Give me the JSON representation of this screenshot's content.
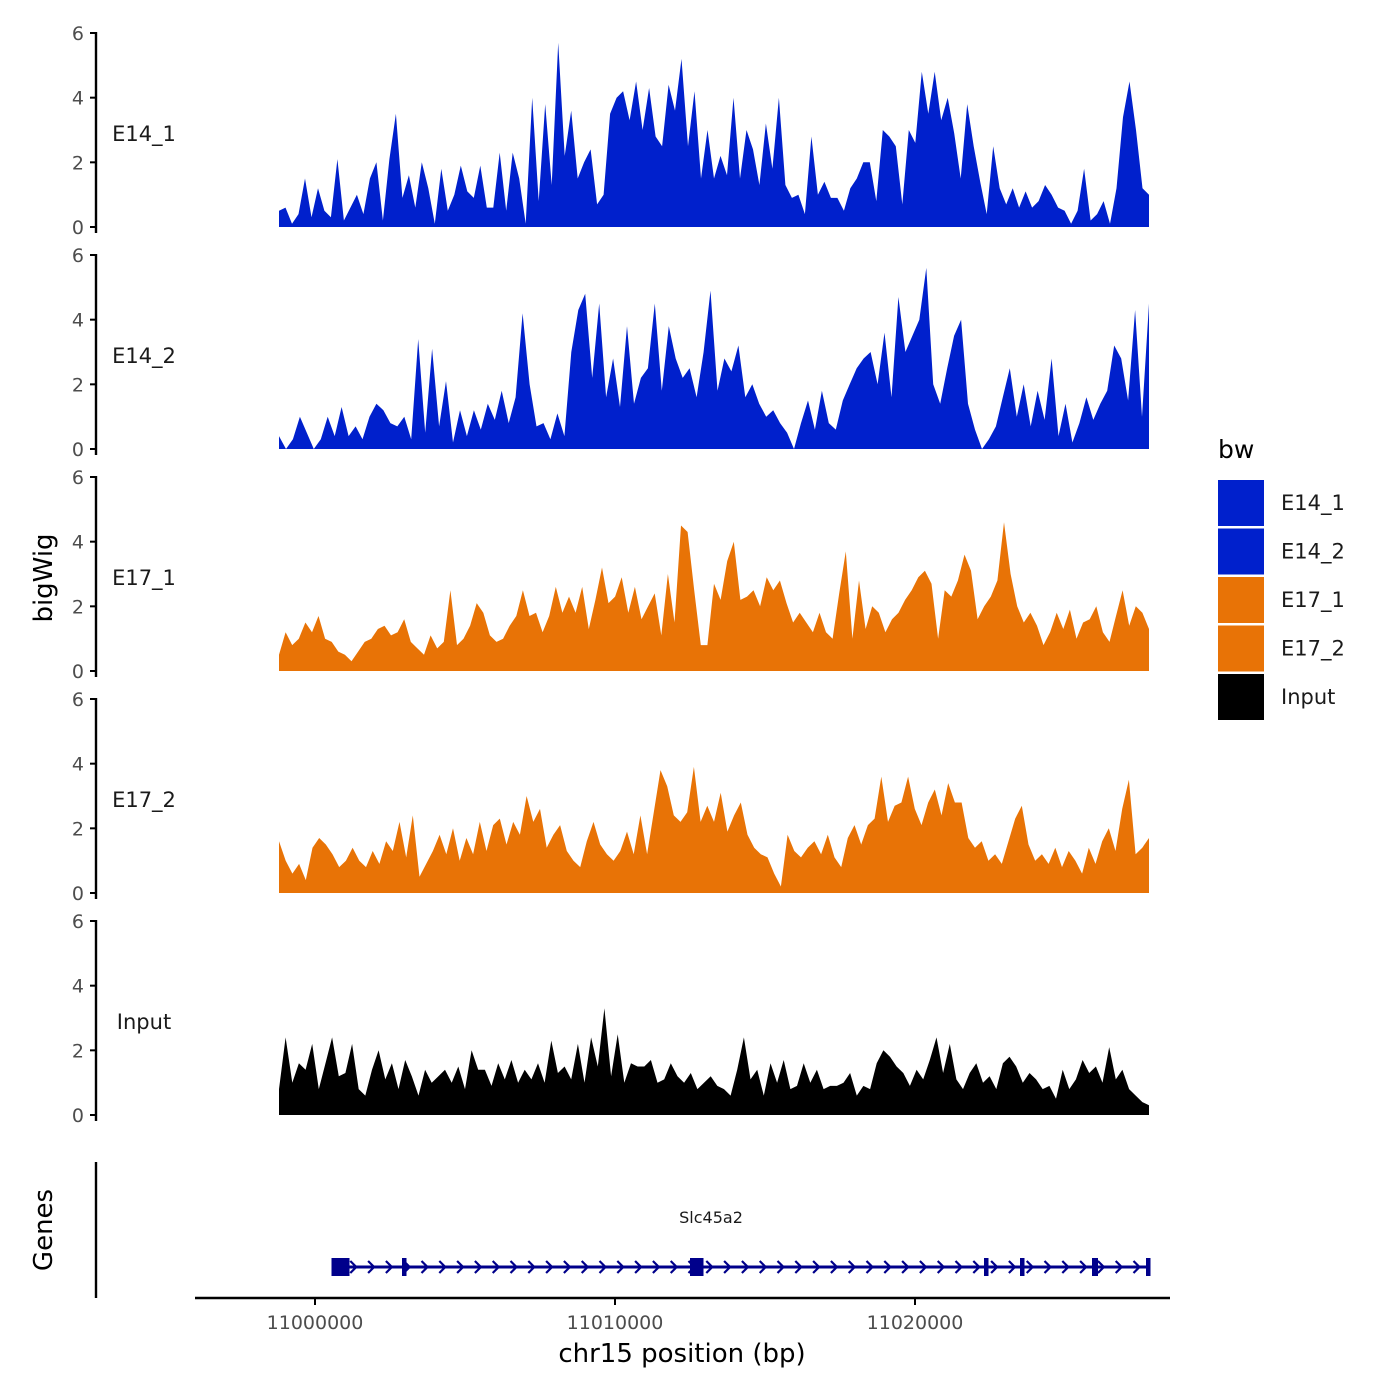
{
  "chart_data": {
    "type": "area",
    "title": "",
    "xlabel": "chr15 position (bp)",
    "ylabel": "bigWig",
    "genes_label": "Genes",
    "xlim": [
      10996000,
      11028500
    ],
    "ylim": [
      0,
      6
    ],
    "x_ticks": [
      11000000,
      11010000,
      11020000
    ],
    "y_ticks": [
      0,
      2,
      4,
      6
    ],
    "data_range": [
      10998800,
      11027800
    ],
    "legend": {
      "title": "bw",
      "placement": "right",
      "entries": [
        {
          "label": "E14_1",
          "color": "#0020CC"
        },
        {
          "label": "E14_2",
          "color": "#0020CC"
        },
        {
          "label": "E17_1",
          "color": "#E87306"
        },
        {
          "label": "E17_2",
          "color": "#E87306"
        },
        {
          "label": "Input",
          "color": "#000000"
        }
      ]
    },
    "series": [
      {
        "name": "E14_1",
        "color": "#0020CC",
        "values": [
          0.5,
          0.6,
          0.1,
          0.4,
          1.5,
          0.3,
          1.2,
          0.5,
          0.3,
          2.1,
          0.2,
          0.6,
          1.0,
          0.4,
          1.5,
          2.0,
          0.2,
          2.1,
          3.5,
          0.9,
          1.6,
          0.6,
          2.0,
          1.2,
          0.1,
          1.8,
          0.5,
          1.0,
          1.9,
          1.1,
          0.9,
          1.9,
          0.6,
          0.6,
          2.3,
          0.5,
          2.3,
          1.5,
          0.1,
          4.0,
          0.8,
          3.8,
          1.3,
          5.7,
          2.2,
          3.6,
          1.5,
          2.0,
          2.4,
          0.7,
          1.0,
          3.5,
          4.0,
          4.2,
          3.3,
          4.5,
          3.0,
          4.3,
          2.8,
          2.5,
          4.4,
          3.6,
          5.2,
          2.5,
          4.2,
          1.5,
          3.0,
          1.5,
          2.2,
          1.6,
          4.0,
          1.5,
          3.0,
          2.4,
          1.3,
          3.2,
          1.8,
          4.0,
          1.3,
          0.9,
          1.0,
          0.4,
          2.8,
          1.0,
          1.4,
          0.9,
          0.9,
          0.5,
          1.2,
          1.5,
          2.0,
          2.0,
          0.8,
          3.0,
          2.8,
          2.5,
          0.7,
          3.0,
          2.6,
          4.8,
          3.5,
          4.8,
          3.3,
          4.0,
          2.9,
          1.5,
          3.8,
          2.5,
          1.4,
          0.4,
          2.5,
          1.2,
          0.7,
          1.2,
          0.6,
          1.1,
          0.6,
          0.8,
          1.3,
          1.0,
          0.6,
          0.5,
          0.1,
          0.5,
          1.8,
          0.2,
          0.4,
          0.8,
          0.1,
          1.2,
          3.4,
          4.5,
          3.0,
          1.2,
          1.0
        ]
      },
      {
        "name": "E14_2",
        "color": "#0020CC",
        "values": [
          0.4,
          0.0,
          0.3,
          1.0,
          0.5,
          0.0,
          0.3,
          1.0,
          0.4,
          1.3,
          0.4,
          0.7,
          0.3,
          1.0,
          1.4,
          1.2,
          0.8,
          0.7,
          1.0,
          0.3,
          3.4,
          0.5,
          3.1,
          0.7,
          2.1,
          0.2,
          1.2,
          0.4,
          1.2,
          0.6,
          1.4,
          0.9,
          1.8,
          0.8,
          1.6,
          4.2,
          2.0,
          0.7,
          0.8,
          0.3,
          1.1,
          0.4,
          3.0,
          4.3,
          4.8,
          2.2,
          4.5,
          1.6,
          2.8,
          1.3,
          3.8,
          1.4,
          2.2,
          2.5,
          4.5,
          1.8,
          3.8,
          2.8,
          2.2,
          2.5,
          1.6,
          3.0,
          4.9,
          1.8,
          2.8,
          2.4,
          3.2,
          1.6,
          2.0,
          1.4,
          1.0,
          1.2,
          0.8,
          0.5,
          0.0,
          0.8,
          1.5,
          0.6,
          1.8,
          0.8,
          0.6,
          1.5,
          2.0,
          2.5,
          2.8,
          3.0,
          2.0,
          3.6,
          1.6,
          4.7,
          3.0,
          3.5,
          4.0,
          5.6,
          2.0,
          1.4,
          2.5,
          3.5,
          4.0,
          1.4,
          0.6,
          0.0,
          0.3,
          0.7,
          1.6,
          2.5,
          1.0,
          2.0,
          0.7,
          1.8,
          0.9,
          2.8,
          0.4,
          1.4,
          0.2,
          0.8,
          1.6,
          0.9,
          1.4,
          1.8,
          3.2,
          2.8,
          1.5,
          4.3,
          1.0,
          4.5
        ]
      },
      {
        "name": "E17_1",
        "color": "#E87306",
        "values": [
          0.5,
          1.2,
          0.8,
          1.0,
          1.5,
          1.2,
          1.7,
          1.0,
          0.9,
          0.6,
          0.5,
          0.3,
          0.6,
          0.9,
          1.0,
          1.3,
          1.4,
          1.1,
          1.2,
          1.6,
          0.9,
          0.7,
          0.5,
          1.1,
          0.7,
          0.9,
          2.5,
          0.8,
          1.0,
          1.4,
          2.1,
          1.8,
          1.1,
          0.9,
          1.0,
          1.4,
          1.7,
          2.5,
          1.7,
          1.8,
          1.2,
          1.7,
          2.6,
          1.8,
          2.3,
          1.8,
          2.6,
          1.3,
          2.2,
          3.2,
          2.1,
          2.3,
          2.9,
          1.8,
          2.6,
          1.6,
          2.0,
          2.4,
          1.1,
          3.0,
          1.5,
          4.5,
          4.3,
          2.5,
          0.8,
          0.8,
          2.7,
          2.2,
          3.4,
          4.0,
          2.2,
          2.3,
          2.5,
          2.0,
          2.9,
          2.5,
          2.8,
          2.1,
          1.5,
          1.8,
          1.5,
          1.2,
          1.8,
          1.2,
          1.0,
          2.4,
          3.7,
          1.0,
          2.8,
          1.3,
          2.0,
          1.8,
          1.2,
          1.6,
          1.8,
          2.2,
          2.5,
          2.9,
          3.1,
          2.7,
          1.0,
          2.5,
          2.3,
          2.8,
          3.6,
          3.1,
          1.6,
          2.0,
          2.3,
          2.8,
          4.6,
          3.0,
          2.0,
          1.5,
          1.8,
          1.4,
          0.8,
          1.2,
          1.8,
          1.3,
          1.9,
          1.0,
          1.5,
          1.6,
          2.0,
          1.2,
          0.9,
          1.7,
          2.5,
          1.4,
          2.0,
          1.8,
          1.3
        ]
      },
      {
        "name": "E17_2",
        "color": "#E87306",
        "values": [
          1.6,
          1.0,
          0.6,
          0.9,
          0.4,
          1.4,
          1.7,
          1.5,
          1.2,
          0.8,
          1.0,
          1.4,
          1.0,
          0.8,
          1.3,
          0.9,
          1.6,
          1.3,
          2.2,
          1.1,
          2.4,
          0.5,
          0.9,
          1.3,
          1.8,
          1.2,
          2.0,
          1.0,
          1.7,
          1.2,
          2.2,
          1.3,
          2.1,
          2.3,
          1.5,
          2.2,
          1.8,
          3.0,
          2.2,
          2.6,
          1.4,
          1.8,
          2.1,
          1.3,
          1.0,
          0.8,
          1.6,
          2.2,
          1.5,
          1.2,
          1.0,
          1.3,
          1.9,
          1.2,
          2.4,
          1.2,
          2.5,
          3.8,
          3.3,
          2.4,
          2.2,
          2.5,
          3.9,
          2.2,
          2.7,
          2.2,
          3.1,
          1.9,
          2.4,
          2.8,
          1.8,
          1.4,
          1.2,
          1.1,
          0.6,
          0.2,
          1.8,
          1.3,
          1.1,
          1.4,
          1.6,
          1.2,
          1.8,
          1.1,
          0.8,
          1.7,
          2.1,
          1.5,
          2.1,
          2.3,
          3.6,
          2.2,
          2.7,
          2.8,
          3.6,
          2.6,
          2.1,
          2.8,
          3.2,
          2.4,
          3.4,
          2.8,
          2.8,
          1.7,
          1.4,
          1.6,
          1.0,
          1.2,
          0.9,
          1.6,
          2.3,
          2.7,
          1.5,
          1.0,
          1.2,
          0.9,
          1.4,
          0.8,
          1.3,
          1.0,
          0.6,
          1.4,
          0.9,
          1.6,
          2.0,
          1.3,
          2.6,
          3.5,
          1.2,
          1.4,
          1.7
        ]
      },
      {
        "name": "Input",
        "color": "#000000",
        "values": [
          0.8,
          2.4,
          1.0,
          1.6,
          1.4,
          2.2,
          0.8,
          1.6,
          2.4,
          1.2,
          1.3,
          2.2,
          0.8,
          0.6,
          1.4,
          2.0,
          1.1,
          1.6,
          0.8,
          1.7,
          1.2,
          0.6,
          1.4,
          1.0,
          1.2,
          1.4,
          1.0,
          1.5,
          0.8,
          2.0,
          1.4,
          1.4,
          0.9,
          1.6,
          1.1,
          1.7,
          1.0,
          1.4,
          1.1,
          1.6,
          1.0,
          2.3,
          1.3,
          1.5,
          1.1,
          2.2,
          1.0,
          2.4,
          1.5,
          3.3,
          1.2,
          2.5,
          1.0,
          1.6,
          1.5,
          1.5,
          1.7,
          1.0,
          1.1,
          1.6,
          1.2,
          1.0,
          1.3,
          0.8,
          1.0,
          1.2,
          0.9,
          0.8,
          0.6,
          1.4,
          2.4,
          1.1,
          1.4,
          0.6,
          1.6,
          1.0,
          1.7,
          0.8,
          0.9,
          1.6,
          1.0,
          1.4,
          0.8,
          0.9,
          0.9,
          1.0,
          1.3,
          0.6,
          0.9,
          0.8,
          1.6,
          2.0,
          1.8,
          1.5,
          1.3,
          0.9,
          1.4,
          1.1,
          1.7,
          2.4,
          1.3,
          2.2,
          1.1,
          0.8,
          1.3,
          1.6,
          1.0,
          1.2,
          0.8,
          1.6,
          1.8,
          1.5,
          1.0,
          1.3,
          1.1,
          0.8,
          0.9,
          0.5,
          1.4,
          0.8,
          1.1,
          1.7,
          1.3,
          1.5,
          1.0,
          2.1,
          1.1,
          1.4,
          0.8,
          0.6,
          0.4,
          0.3
        ]
      }
    ],
    "gene": {
      "name": "Slc45a2",
      "strand": "+",
      "start": 11000550,
      "end": 11027850,
      "exons": [
        [
          11000550,
          11001150
        ],
        [
          11002900,
          11003050
        ],
        [
          11012500,
          11012950
        ],
        [
          11022300,
          11022450
        ],
        [
          11023500,
          11023650
        ],
        [
          11025900,
          11026100
        ],
        [
          11027700,
          11027850
        ]
      ]
    }
  }
}
